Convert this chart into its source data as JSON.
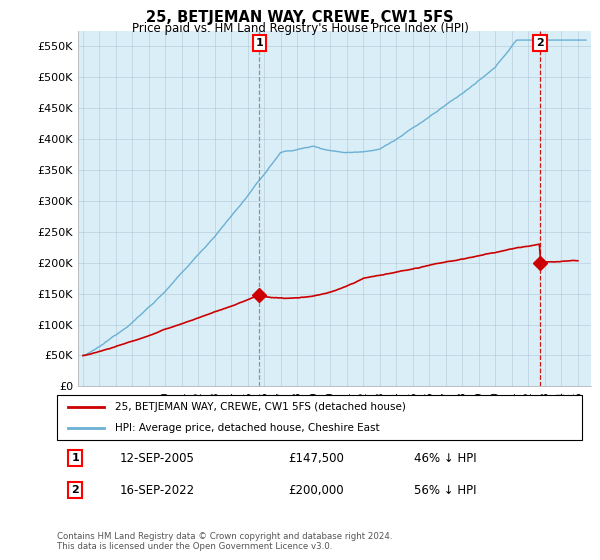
{
  "title": "25, BETJEMAN WAY, CREWE, CW1 5FS",
  "subtitle": "Price paid vs. HM Land Registry's House Price Index (HPI)",
  "ylabel_ticks": [
    "£0",
    "£50K",
    "£100K",
    "£150K",
    "£200K",
    "£250K",
    "£300K",
    "£350K",
    "£400K",
    "£450K",
    "£500K",
    "£550K"
  ],
  "ytick_values": [
    0,
    50000,
    100000,
    150000,
    200000,
    250000,
    300000,
    350000,
    400000,
    450000,
    500000,
    550000
  ],
  "ylim": [
    0,
    575000
  ],
  "xlim_start": 1994.7,
  "xlim_end": 2025.8,
  "hpi_color": "#6ab0d4",
  "hpi_fill_color": "#daeef7",
  "price_color": "#cc0000",
  "marker1_date": 2005.7,
  "marker1_price": 147500,
  "marker2_date": 2022.7,
  "marker2_price": 200000,
  "vline1_x": 2005.7,
  "vline2_x": 2022.7,
  "legend_line1": "25, BETJEMAN WAY, CREWE, CW1 5FS (detached house)",
  "legend_line2": "HPI: Average price, detached house, Cheshire East",
  "annotation1_date": "12-SEP-2005",
  "annotation1_price": "£147,500",
  "annotation1_pct": "46% ↓ HPI",
  "annotation2_date": "16-SEP-2022",
  "annotation2_price": "£200,000",
  "annotation2_pct": "56% ↓ HPI",
  "footer": "Contains HM Land Registry data © Crown copyright and database right 2024.\nThis data is licensed under the Open Government Licence v3.0.",
  "background_color": "#ffffff",
  "chart_bg_color": "#daeef7",
  "grid_color": "#b0c8d8"
}
